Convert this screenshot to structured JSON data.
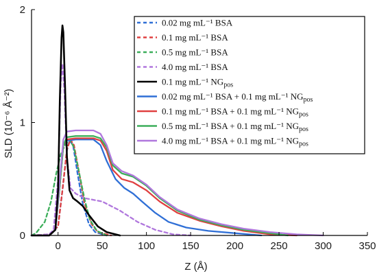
{
  "chart_data": {
    "type": "line",
    "xlabel": "Z (Å)",
    "ylabel": "SLD (10⁻⁶ Å⁻²)",
    "xlim": [
      -30,
      350
    ],
    "ylim": [
      0,
      2
    ],
    "x_ticks": [
      0,
      50,
      100,
      150,
      200,
      250,
      300,
      350
    ],
    "x_tick_labels": [
      "0",
      "50",
      "100",
      "150",
      "200",
      "250",
      "300",
      "350"
    ],
    "y_ticks": [
      0,
      1,
      2
    ],
    "y_tick_labels": [
      "0",
      "1",
      "2"
    ],
    "legend_position": "top-right",
    "grid": false,
    "series": [
      {
        "name": "0.02 mg mL⁻¹ BSA",
        "color": "#2f6fd6",
        "style": "dashed",
        "points": [
          [
            -30,
            0
          ],
          [
            -10,
            0.01
          ],
          [
            0,
            0.08
          ],
          [
            5,
            0.4
          ],
          [
            10,
            0.75
          ],
          [
            13,
            0.84
          ],
          [
            17,
            0.8
          ],
          [
            22,
            0.55
          ],
          [
            28,
            0.28
          ],
          [
            35,
            0.1
          ],
          [
            42,
            0.03
          ],
          [
            55,
            0
          ]
        ]
      },
      {
        "name": "0.1 mg mL⁻¹ BSA",
        "color": "#e04040",
        "style": "dashed",
        "points": [
          [
            -30,
            0
          ],
          [
            -10,
            0.01
          ],
          [
            0,
            0.08
          ],
          [
            5,
            0.4
          ],
          [
            10,
            0.76
          ],
          [
            14,
            0.85
          ],
          [
            18,
            0.8
          ],
          [
            24,
            0.55
          ],
          [
            30,
            0.28
          ],
          [
            38,
            0.1
          ],
          [
            45,
            0.03
          ],
          [
            60,
            0
          ]
        ]
      },
      {
        "name": "0.5 mg mL⁻¹ BSA",
        "color": "#3cae5a",
        "style": "dashed",
        "points": [
          [
            -30,
            0
          ],
          [
            -25,
            0.02
          ],
          [
            -15,
            0.12
          ],
          [
            -8,
            0.3
          ],
          [
            -2,
            0.55
          ],
          [
            3,
            0.72
          ],
          [
            8,
            0.8
          ],
          [
            13,
            0.85
          ],
          [
            18,
            0.78
          ],
          [
            24,
            0.55
          ],
          [
            30,
            0.32
          ],
          [
            36,
            0.14
          ],
          [
            44,
            0.04
          ],
          [
            55,
            0
          ]
        ]
      },
      {
        "name": "4.0 mg mL⁻¹ BSA",
        "color": "#b077dd",
        "style": "dashed",
        "points": [
          [
            -30,
            0
          ],
          [
            -10,
            0.01
          ],
          [
            -5,
            0.05
          ],
          [
            0,
            0.5
          ],
          [
            3,
            1.35
          ],
          [
            5,
            1.52
          ],
          [
            7,
            1.3
          ],
          [
            10,
            0.7
          ],
          [
            14,
            0.42
          ],
          [
            20,
            0.37
          ],
          [
            30,
            0.33
          ],
          [
            50,
            0.3
          ],
          [
            70,
            0.22
          ],
          [
            90,
            0.12
          ],
          [
            110,
            0.05
          ],
          [
            130,
            0.01
          ],
          [
            150,
            0
          ]
        ]
      },
      {
        "name": "0.1 mg mL⁻¹ NG_pos",
        "color": "#000000",
        "style": "solid",
        "points": [
          [
            -30,
            0
          ],
          [
            -10,
            0
          ],
          [
            -3,
            0.05
          ],
          [
            0,
            0.4
          ],
          [
            2,
            1.2
          ],
          [
            4,
            1.75
          ],
          [
            5,
            1.86
          ],
          [
            6,
            1.8
          ],
          [
            8,
            1.3
          ],
          [
            10,
            0.7
          ],
          [
            13,
            0.4
          ],
          [
            17,
            0.33
          ],
          [
            22,
            0.3
          ],
          [
            28,
            0.26
          ],
          [
            35,
            0.18
          ],
          [
            45,
            0.08
          ],
          [
            55,
            0.03
          ],
          [
            70,
            0
          ]
        ]
      },
      {
        "name": "0.02 mg mL⁻¹ BSA + 0.1 mg mL⁻¹ NG_pos",
        "color": "#2f6fd6",
        "style": "solid",
        "points": [
          [
            -30,
            0
          ],
          [
            -10,
            0
          ],
          [
            -3,
            0.05
          ],
          [
            2,
            0.45
          ],
          [
            6,
            0.8
          ],
          [
            10,
            0.84
          ],
          [
            20,
            0.85
          ],
          [
            40,
            0.85
          ],
          [
            48,
            0.8
          ],
          [
            55,
            0.66
          ],
          [
            65,
            0.5
          ],
          [
            75,
            0.42
          ],
          [
            85,
            0.37
          ],
          [
            95,
            0.3
          ],
          [
            110,
            0.2
          ],
          [
            125,
            0.12
          ],
          [
            145,
            0.07
          ],
          [
            170,
            0.04
          ],
          [
            200,
            0.02
          ],
          [
            230,
            0
          ]
        ]
      },
      {
        "name": "0.1 mg mL⁻¹ BSA + 0.1 mg mL⁻¹ NG_pos",
        "color": "#e04040",
        "style": "solid",
        "points": [
          [
            -30,
            0
          ],
          [
            -10,
            0
          ],
          [
            -3,
            0.05
          ],
          [
            2,
            0.45
          ],
          [
            6,
            0.8
          ],
          [
            10,
            0.85
          ],
          [
            20,
            0.86
          ],
          [
            40,
            0.86
          ],
          [
            48,
            0.84
          ],
          [
            55,
            0.75
          ],
          [
            62,
            0.58
          ],
          [
            72,
            0.5
          ],
          [
            85,
            0.47
          ],
          [
            100,
            0.4
          ],
          [
            115,
            0.3
          ],
          [
            135,
            0.2
          ],
          [
            160,
            0.13
          ],
          [
            185,
            0.08
          ],
          [
            210,
            0.04
          ],
          [
            240,
            0.01
          ],
          [
            270,
            0
          ]
        ]
      },
      {
        "name": "0.5 mg mL⁻¹ BSA + 0.1 mg mL⁻¹ NG_pos",
        "color": "#3cae5a",
        "style": "solid",
        "points": [
          [
            -30,
            0
          ],
          [
            -10,
            0
          ],
          [
            -3,
            0.05
          ],
          [
            2,
            0.45
          ],
          [
            6,
            0.8
          ],
          [
            10,
            0.87
          ],
          [
            20,
            0.88
          ],
          [
            40,
            0.88
          ],
          [
            48,
            0.86
          ],
          [
            55,
            0.78
          ],
          [
            62,
            0.62
          ],
          [
            72,
            0.55
          ],
          [
            85,
            0.52
          ],
          [
            100,
            0.44
          ],
          [
            115,
            0.33
          ],
          [
            135,
            0.22
          ],
          [
            160,
            0.14
          ],
          [
            185,
            0.09
          ],
          [
            210,
            0.05
          ],
          [
            240,
            0.02
          ],
          [
            260,
            0
          ]
        ]
      },
      {
        "name": "4.0 mg mL⁻¹ BSA + 0.1 mg mL⁻¹ NG_pos",
        "color": "#b077dd",
        "style": "solid",
        "points": [
          [
            -30,
            0
          ],
          [
            -10,
            0
          ],
          [
            -3,
            0.05
          ],
          [
            2,
            0.5
          ],
          [
            6,
            0.85
          ],
          [
            10,
            0.92
          ],
          [
            20,
            0.93
          ],
          [
            40,
            0.93
          ],
          [
            48,
            0.9
          ],
          [
            55,
            0.8
          ],
          [
            62,
            0.64
          ],
          [
            72,
            0.57
          ],
          [
            85,
            0.53
          ],
          [
            100,
            0.45
          ],
          [
            115,
            0.34
          ],
          [
            135,
            0.23
          ],
          [
            160,
            0.15
          ],
          [
            185,
            0.1
          ],
          [
            210,
            0.06
          ],
          [
            240,
            0.03
          ],
          [
            270,
            0.01
          ],
          [
            300,
            0
          ]
        ]
      }
    ]
  }
}
